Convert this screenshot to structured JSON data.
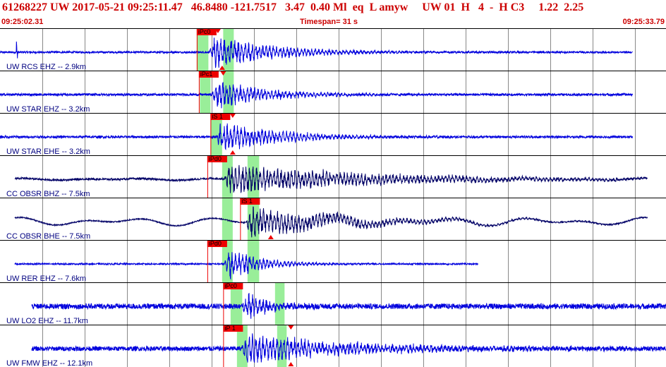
{
  "header": {
    "title": "61268227 UW 2017-05-21 09:25:11.47   46.8480 -121.7517   3.47  0.40 Ml  eq  L amyw     UW 01  H   4  -  H C3     1.22  2.25",
    "start_time": "09:25:02.31",
    "timespan": "Timespan=  31 s",
    "end_time": "09:25:33.79"
  },
  "colors": {
    "title": "#cc0000",
    "trace_blue": "#0000dd",
    "trace_dark": "#000066",
    "pick_box": "#ee0000",
    "pick_window": "#99ee99",
    "grid": "#888888",
    "label": "#000080"
  },
  "chart_data": {
    "type": "line",
    "x_unit": "seconds",
    "xlim": [
      0,
      31.48
    ],
    "gridline_step_s": 2,
    "traces": [
      {
        "label": "UW RCS EHZ -- 2.9km",
        "color": "#0000dd",
        "start": 0.0,
        "end": 29.9,
        "noise": 0.05,
        "onset": 9.9,
        "amp": 1.0,
        "decay": 3.0,
        "spike": 0.8,
        "picks": [
          {
            "text": "iPc0",
            "t": 9.3
          }
        ],
        "windows": [
          [
            9.3,
            9.85
          ],
          [
            10.55,
            11.05
          ]
        ],
        "markers": [
          {
            "t": 10.3,
            "dir": "down"
          },
          {
            "t": 10.5,
            "dir": "up"
          }
        ]
      },
      {
        "label": "UW STAR EHZ -- 3.2km",
        "color": "#0000dd",
        "start": 0.0,
        "end": 29.9,
        "noise": 0.06,
        "onset": 10.0,
        "amp": 0.9,
        "decay": 2.5,
        "picks": [
          {
            "text": "iPc1",
            "t": 9.4
          }
        ],
        "windows": [
          [
            9.45,
            9.95
          ],
          [
            10.55,
            11.05
          ]
        ],
        "markers": [
          {
            "t": 10.55,
            "dir": "down"
          }
        ]
      },
      {
        "label": "UW STAR EHE -- 3.2km",
        "color": "#0000dd",
        "start": 0.0,
        "end": 29.9,
        "noise": 0.06,
        "onset": 10.2,
        "amp": 1.0,
        "decay": 2.8,
        "picks": [
          {
            "text": "iS 1",
            "t": 9.95
          }
        ],
        "windows": [
          [
            9.95,
            10.5
          ]
        ],
        "markers": [
          {
            "t": 11.0,
            "dir": "down"
          },
          {
            "t": 11.0,
            "dir": "up"
          }
        ]
      },
      {
        "label": "CC OBSR BHZ -- 7.5km",
        "color": "#000066",
        "start": 0.7,
        "end": 30.6,
        "noise": 0.05,
        "onset": 10.6,
        "amp": 0.9,
        "decay": 7.0,
        "wobble": 0.05,
        "picks": [
          {
            "text": "iPd0",
            "t": 9.8
          }
        ],
        "windows": [
          [
            10.5,
            11.0
          ],
          [
            11.7,
            12.25
          ]
        ],
        "markers": []
      },
      {
        "label": "CC OBSR BHE -- 7.5km",
        "color": "#000066",
        "start": 0.7,
        "end": 30.6,
        "noise": 0.03,
        "onset": 11.6,
        "amp": 0.9,
        "decay": 4.5,
        "wobble": 0.22,
        "picks": [
          {
            "text": "iS 1",
            "t": 11.35
          }
        ],
        "windows": [
          [
            10.5,
            11.0
          ],
          [
            11.7,
            12.25
          ]
        ],
        "markers": [
          {
            "t": 12.8,
            "dir": "up"
          }
        ]
      },
      {
        "label": "UW RER EHZ -- 7.6km",
        "color": "#0000dd",
        "start": 0.7,
        "end": 22.6,
        "noise": 0.04,
        "onset": 10.6,
        "amp": 1.0,
        "decay": 1.6,
        "picks": [
          {
            "text": "iPd0",
            "t": 9.8
          }
        ],
        "windows": [
          [
            10.5,
            11.0
          ],
          [
            11.7,
            12.25
          ]
        ],
        "markers": []
      },
      {
        "label": "UW LO2 EHZ -- 11.7km",
        "color": "#0000dd",
        "start": 1.5,
        "end": 31.48,
        "noise": 0.14,
        "onset": 11.4,
        "amp": 0.9,
        "decay": 1.2,
        "picks": [
          {
            "text": "iPc0",
            "t": 10.55
          }
        ],
        "windows": [
          [
            10.9,
            11.45
          ],
          [
            13.0,
            13.45
          ]
        ],
        "markers": []
      },
      {
        "label": "UW FMW EHZ -- 12.1km",
        "color": "#0000dd",
        "start": 1.5,
        "end": 31.48,
        "noise": 0.12,
        "onset": 11.4,
        "amp": 0.9,
        "decay": 5.0,
        "picks": [
          {
            "text": "iP 1",
            "t": 10.55
          }
        ],
        "windows": [
          [
            11.2,
            11.7
          ],
          [
            13.1,
            13.55
          ]
        ],
        "markers": [
          {
            "t": 13.75,
            "dir": "down"
          },
          {
            "t": 13.75,
            "dir": "up"
          }
        ]
      }
    ]
  }
}
